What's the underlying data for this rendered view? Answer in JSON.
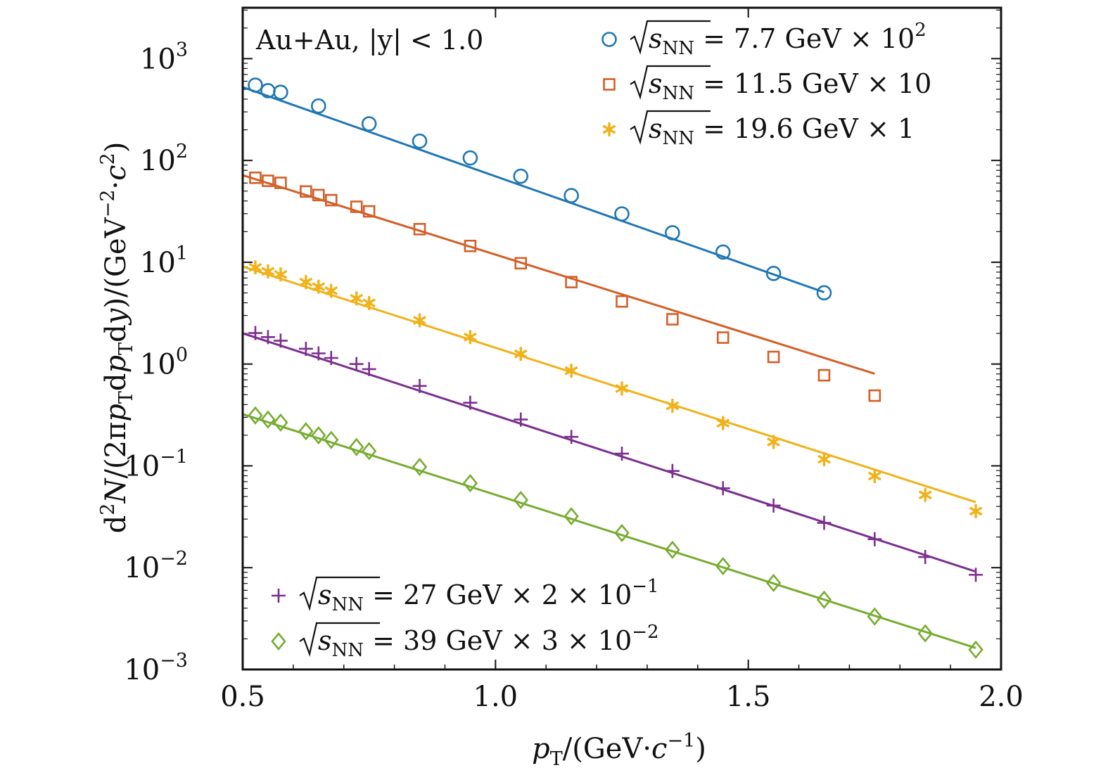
{
  "chart_data": {
    "type": "scatter",
    "title": "",
    "annotation": "Au+Au, |y| < 1.0",
    "xlabel": "pT/(GeV·c⁻¹)",
    "ylabel": "d²N/(2πpTdpTdy)/(GeV⁻²·c²)",
    "xlim": [
      0.5,
      2.0
    ],
    "ylim_log10": [
      -3,
      3.5
    ],
    "yscale": "log",
    "x_ticks": [
      {
        "value": 0.5,
        "label": "0.5"
      },
      {
        "value": 1.0,
        "label": "1.0"
      },
      {
        "value": 1.5,
        "label": "1.5"
      },
      {
        "value": 2.0,
        "label": "2.0"
      }
    ],
    "y_ticks": [
      {
        "value": 3,
        "base": "10",
        "exp": "3"
      },
      {
        "value": 2,
        "base": "10",
        "exp": "2"
      },
      {
        "value": 1,
        "base": "10",
        "exp": "1"
      },
      {
        "value": 0,
        "base": "10",
        "exp": "0"
      },
      {
        "value": -1,
        "base": "10",
        "exp": "−1"
      },
      {
        "value": -2,
        "base": "10",
        "exp": "−2"
      },
      {
        "value": -3,
        "base": "10",
        "exp": "−3"
      }
    ],
    "series": [
      {
        "name": "√sNN = 7.7 GeV × 10²",
        "energy": "7.7",
        "scale": "10",
        "scale_exp": "2",
        "color": "#1f77b4",
        "marker": "circle",
        "fit": {
          "a": 2.72,
          "b": -1.752,
          "x0": 0.5,
          "x1": 1.65
        },
        "points": [
          [
            0.525,
            2.74
          ],
          [
            0.55,
            2.685
          ],
          [
            0.575,
            2.67
          ],
          [
            0.65,
            2.535
          ],
          [
            0.75,
            2.36
          ],
          [
            0.85,
            2.19
          ],
          [
            0.95,
            2.025
          ],
          [
            1.05,
            1.845
          ],
          [
            1.15,
            1.655
          ],
          [
            1.25,
            1.475
          ],
          [
            1.35,
            1.29
          ],
          [
            1.45,
            1.1
          ],
          [
            1.55,
            0.89
          ],
          [
            1.65,
            0.7
          ]
        ]
      },
      {
        "name": "√sNN = 11.5 GeV × 10",
        "energy": "11.5",
        "scale": "10",
        "scale_exp": "",
        "color": "#d35f27",
        "marker": "square",
        "fit": {
          "a": 1.855,
          "b": -1.56,
          "x0": 0.5,
          "x1": 1.75
        },
        "points": [
          [
            0.525,
            1.83
          ],
          [
            0.55,
            1.8
          ],
          [
            0.575,
            1.78
          ],
          [
            0.625,
            1.695
          ],
          [
            0.65,
            1.66
          ],
          [
            0.675,
            1.61
          ],
          [
            0.725,
            1.545
          ],
          [
            0.75,
            1.5
          ],
          [
            0.85,
            1.325
          ],
          [
            0.95,
            1.16
          ],
          [
            1.05,
            0.99
          ],
          [
            1.15,
            0.805
          ],
          [
            1.25,
            0.615
          ],
          [
            1.35,
            0.44
          ],
          [
            1.45,
            0.26
          ],
          [
            1.55,
            0.07
          ],
          [
            1.65,
            -0.11
          ],
          [
            1.75,
            -0.31
          ]
        ]
      },
      {
        "name": "√sNN = 19.6 GeV × 1",
        "energy": "19.6",
        "scale": "1",
        "scale_exp": "",
        "color": "#f0b21a",
        "marker": "asterisk",
        "fit": {
          "a": 0.958,
          "b": -1.596,
          "x0": 0.5,
          "x1": 1.95
        },
        "points": [
          [
            0.525,
            0.95
          ],
          [
            0.55,
            0.91
          ],
          [
            0.575,
            0.88
          ],
          [
            0.625,
            0.805
          ],
          [
            0.65,
            0.76
          ],
          [
            0.675,
            0.72
          ],
          [
            0.725,
            0.645
          ],
          [
            0.75,
            0.6
          ],
          [
            0.85,
            0.43
          ],
          [
            0.95,
            0.265
          ],
          [
            1.05,
            0.1
          ],
          [
            1.15,
            -0.065
          ],
          [
            1.25,
            -0.24
          ],
          [
            1.35,
            -0.41
          ],
          [
            1.45,
            -0.58
          ],
          [
            1.55,
            -0.765
          ],
          [
            1.65,
            -0.935
          ],
          [
            1.75,
            -1.1
          ],
          [
            1.85,
            -1.285
          ],
          [
            1.95,
            -1.445
          ]
        ]
      },
      {
        "name": "√sNN = 27 GeV × 2 × 10⁻¹",
        "energy": "27",
        "scale": "2 × 10",
        "scale_exp": "−1",
        "color": "#7b2f8e",
        "marker": "plus",
        "fit": {
          "a": 0.302,
          "b": -1.614,
          "x0": 0.5,
          "x1": 1.95
        },
        "points": [
          [
            0.525,
            0.305
          ],
          [
            0.55,
            0.265
          ],
          [
            0.575,
            0.23
          ],
          [
            0.625,
            0.15
          ],
          [
            0.65,
            0.105
          ],
          [
            0.675,
            0.06
          ],
          [
            0.725,
            0.0
          ],
          [
            0.75,
            -0.05
          ],
          [
            0.85,
            -0.215
          ],
          [
            0.95,
            -0.38
          ],
          [
            1.05,
            -0.545
          ],
          [
            1.15,
            -0.715
          ],
          [
            1.25,
            -0.88
          ],
          [
            1.35,
            -1.05
          ],
          [
            1.45,
            -1.22
          ],
          [
            1.55,
            -1.39
          ],
          [
            1.65,
            -1.56
          ],
          [
            1.75,
            -1.72
          ],
          [
            1.85,
            -1.895
          ],
          [
            1.95,
            -2.07
          ]
        ]
      },
      {
        "name": "√sNN = 39 GeV × 3 × 10⁻²",
        "energy": "39",
        "scale": "3 × 10",
        "scale_exp": "−2",
        "color": "#77ac30",
        "marker": "diamond",
        "fit": {
          "a": -0.492,
          "b": -1.584,
          "x0": 0.5,
          "x1": 1.95
        },
        "points": [
          [
            0.525,
            -0.505
          ],
          [
            0.55,
            -0.545
          ],
          [
            0.575,
            -0.575
          ],
          [
            0.625,
            -0.66
          ],
          [
            0.65,
            -0.7
          ],
          [
            0.675,
            -0.745
          ],
          [
            0.725,
            -0.815
          ],
          [
            0.75,
            -0.855
          ],
          [
            0.85,
            -1.01
          ],
          [
            0.95,
            -1.17
          ],
          [
            1.05,
            -1.335
          ],
          [
            1.15,
            -1.495
          ],
          [
            1.25,
            -1.66
          ],
          [
            1.35,
            -1.825
          ],
          [
            1.45,
            -1.985
          ],
          [
            1.55,
            -2.15
          ],
          [
            1.65,
            -2.315
          ],
          [
            1.75,
            -2.48
          ],
          [
            1.85,
            -2.645
          ],
          [
            1.95,
            -2.805
          ]
        ]
      }
    ]
  }
}
